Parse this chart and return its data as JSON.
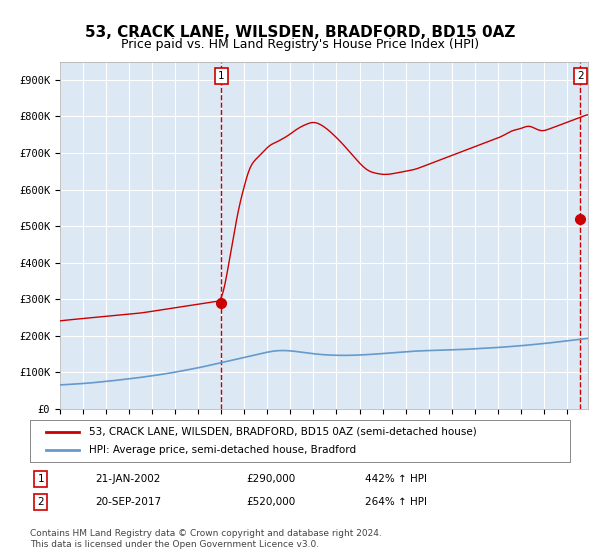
{
  "title": "53, CRACK LANE, WILSDEN, BRADFORD, BD15 0AZ",
  "subtitle": "Price paid vs. HM Land Registry's House Price Index (HPI)",
  "title_fontsize": 11,
  "subtitle_fontsize": 9,
  "bg_color": "#dce9f5",
  "plot_bg_color": "#dce9f5",
  "fig_bg_color": "#ffffff",
  "red_line_color": "#cc0000",
  "blue_line_color": "#6699cc",
  "marker_color": "#cc0000",
  "dashed_color": "#cc0000",
  "ylim": [
    0,
    950000
  ],
  "yticks": [
    0,
    100000,
    200000,
    300000,
    400000,
    500000,
    600000,
    700000,
    800000,
    900000
  ],
  "ytick_labels": [
    "£0",
    "£100K",
    "£200K",
    "£300K",
    "£400K",
    "£500K",
    "£600K",
    "£700K",
    "£800K",
    "£900K"
  ],
  "xlabel": "",
  "ylabel": "",
  "legend_red_label": "53, CRACK LANE, WILSDEN, BRADFORD, BD15 0AZ (semi-detached house)",
  "legend_blue_label": "HPI: Average price, semi-detached house, Bradford",
  "marker1_date_idx": 84,
  "marker1_value": 290000,
  "marker1_label": "1",
  "marker1_table": "21-JAN-2002    £290,000    442% ↑ HPI",
  "marker2_date_idx": 271,
  "marker2_value": 520000,
  "marker2_label": "2",
  "marker2_table": "20-SEP-2017    £520,000    264% ↑ HPI",
  "footer": "Contains HM Land Registry data © Crown copyright and database right 2024.\nThis data is licensed under the Open Government Licence v3.0.",
  "footer_fontsize": 6.5,
  "grid_color": "#ffffff",
  "start_year": 1995,
  "n_months": 360,
  "hpi_base_values": [
    65000,
    65500,
    66000,
    66200,
    66500,
    66800,
    67200,
    67500,
    67800,
    68200,
    68500,
    68800,
    69200,
    69600,
    70000,
    70400,
    70900,
    71400,
    71900,
    72400,
    72900,
    73400,
    73900,
    74400,
    74900,
    75400,
    76000,
    76600,
    77200,
    77800,
    78400,
    79000,
    79600,
    80200,
    80800,
    81400,
    82000,
    82600,
    83200,
    83900,
    84600,
    85300,
    86000,
    86700,
    87400,
    88100,
    88800,
    89500,
    90200,
    91000,
    91800,
    92600,
    93400,
    94200,
    95000,
    95800,
    96700,
    97600,
    98500,
    99400,
    100300,
    101200,
    102200,
    103200,
    104200,
    105200,
    106200,
    107200,
    108200,
    109200,
    110200,
    111200,
    112200,
    113300,
    114400,
    115500,
    116700,
    117900,
    119100,
    120300,
    121500,
    122700,
    123900,
    125100,
    126300,
    127500,
    128700,
    129900,
    131100,
    132300,
    133500,
    134700,
    135900,
    137100,
    138300,
    139500,
    140700,
    141900,
    143100,
    144300,
    145500,
    146700,
    147900,
    149100,
    150300,
    151500,
    152700,
    153900,
    155000,
    156000,
    157000,
    157800,
    158500,
    159000,
    159300,
    159500,
    159600,
    159500,
    159300,
    159000,
    158600,
    158100,
    157500,
    156900,
    156200,
    155500,
    154800,
    154100,
    153400,
    152700,
    152000,
    151300,
    150700,
    150100,
    149500,
    149000,
    148500,
    148100,
    147700,
    147400,
    147100,
    146900,
    146700,
    146500,
    146400,
    146300,
    146200,
    146100,
    146100,
    146100,
    146200,
    146300,
    146400,
    146600,
    146800,
    147000,
    147200,
    147400,
    147700,
    148000,
    148300,
    148600,
    148900,
    149200,
    149600,
    150000,
    150400,
    150800,
    151200,
    151600,
    152000,
    152400,
    152800,
    153200,
    153600,
    154000,
    154400,
    154800,
    155200,
    155600,
    156000,
    156400,
    156800,
    157200,
    157500,
    157800,
    158100,
    158400,
    158600,
    158800,
    159000,
    159200,
    159300,
    159400,
    159500,
    159600,
    159700,
    159800,
    160000,
    160200,
    160400,
    160600,
    160800,
    161000,
    161200,
    161400,
    161600,
    161800,
    162000,
    162200,
    162400,
    162700,
    163000,
    163300,
    163600,
    163900,
    164200,
    164500,
    164800,
    165100,
    165400,
    165700,
    166000,
    166300,
    166600,
    166900,
    167200,
    167500,
    167800,
    168100,
    168500,
    168900,
    169300,
    169700,
    170100,
    170500,
    170900,
    171300,
    171700,
    172100,
    172500,
    173000,
    173500,
    174000,
    174500,
    175000,
    175500,
    176000,
    176500,
    177000,
    177500,
    178000,
    178500,
    179100,
    179700,
    180300,
    180900,
    181500,
    182100,
    182700,
    183300,
    183900,
    184500,
    185100,
    185700,
    186300,
    186900,
    187600,
    188300,
    189000,
    189700,
    190400,
    191100,
    191800,
    192500,
    193200
  ],
  "red_base_values": [
    240000,
    241000,
    242000,
    242500,
    243000,
    243500,
    244000,
    244500,
    245000,
    245500,
    246000,
    246500,
    247000,
    247500,
    248000,
    248500,
    249000,
    249500,
    250000,
    250500,
    251000,
    251500,
    252000,
    252500,
    253000,
    253500,
    254000,
    254500,
    255000,
    255500,
    256000,
    256500,
    257000,
    257500,
    258000,
    258500,
    259000,
    259500,
    260000,
    260500,
    261000,
    261500,
    262000,
    262800,
    263600,
    264400,
    265200,
    266000,
    266800,
    267600,
    268400,
    269200,
    270000,
    270800,
    271600,
    272400,
    273200,
    274000,
    274800,
    275600,
    276400,
    277200,
    278000,
    278800,
    279600,
    280400,
    281200,
    282000,
    282800,
    283600,
    284400,
    285200,
    286000,
    286800,
    287600,
    288400,
    289200,
    290000,
    290800,
    291600,
    292400,
    293200,
    294000,
    294800,
    290000,
    310000,
    340000,
    370000,
    400000,
    430000,
    460000,
    490000,
    520000,
    550000,
    570000,
    590000,
    610000,
    630000,
    650000,
    665000,
    672000,
    678000,
    683000,
    688000,
    693000,
    698000,
    703000,
    710000,
    716000,
    720000,
    724000,
    726000,
    728000,
    730000,
    733000,
    736000,
    739000,
    742000,
    745000,
    748000,
    752000,
    756000,
    760000,
    764000,
    768000,
    770000,
    773000,
    776000,
    778000,
    780000,
    782000,
    784000,
    785000,
    784000,
    782000,
    780000,
    777000,
    774000,
    770000,
    766000,
    762000,
    757000,
    752000,
    747000,
    742000,
    737000,
    732000,
    726000,
    720000,
    714000,
    708000,
    702000,
    696000,
    690000,
    684000,
    678000,
    672000,
    667000,
    662000,
    657000,
    653000,
    650000,
    648000,
    646000,
    645000,
    644000,
    643000,
    642000,
    641000,
    641000,
    641000,
    641500,
    642000,
    643000,
    644000,
    645000,
    646000,
    647000,
    648000,
    649000,
    650000,
    651000,
    652000,
    653000,
    654000,
    655000,
    657000,
    659000,
    661000,
    663000,
    665000,
    667000,
    669000,
    671000,
    673000,
    675000,
    677000,
    679000,
    681000,
    683000,
    685000,
    687000,
    689000,
    691000,
    693000,
    695000,
    697000,
    699000,
    701000,
    703000,
    705000,
    707000,
    709000,
    711000,
    713000,
    715000,
    717000,
    719000,
    721000,
    723000,
    725000,
    727000,
    729000,
    731000,
    733000,
    735000,
    737000,
    739000,
    741000,
    743000,
    745000,
    748000,
    751000,
    754000,
    757000,
    760000,
    763000,
    763000,
    763000,
    765000,
    767000,
    769000,
    771000,
    773000,
    775000,
    775000,
    770000,
    768000,
    766000,
    763000,
    760000,
    760000,
    760000,
    762000,
    764000,
    766000,
    768000,
    770000,
    772000,
    774000,
    776000,
    778000,
    780000,
    782000,
    784000,
    786000,
    788000,
    790000,
    792000,
    794000,
    796000,
    798000,
    800000,
    802000,
    804000,
    806000
  ]
}
